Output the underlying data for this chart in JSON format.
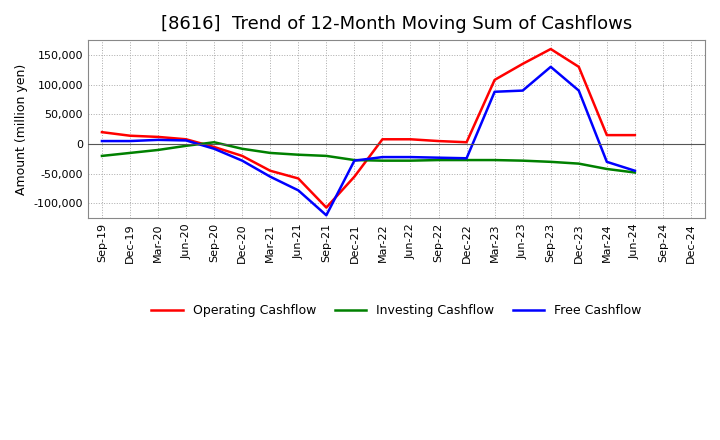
{
  "title": "[8616]  Trend of 12-Month Moving Sum of Cashflows",
  "ylabel": "Amount (million yen)",
  "x_labels": [
    "Sep-19",
    "Dec-19",
    "Mar-20",
    "Jun-20",
    "Sep-20",
    "Dec-20",
    "Mar-21",
    "Jun-21",
    "Sep-21",
    "Dec-21",
    "Mar-22",
    "Jun-22",
    "Sep-22",
    "Dec-22",
    "Mar-23",
    "Jun-23",
    "Sep-23",
    "Dec-23",
    "Mar-24",
    "Jun-24",
    "Sep-24",
    "Dec-24"
  ],
  "operating_cashflow": [
    20000,
    14000,
    12000,
    8000,
    -5000,
    -20000,
    -45000,
    -58000,
    -107000,
    -55000,
    8000,
    8000,
    5000,
    3000,
    108000,
    135000,
    160000,
    130000,
    15000,
    15000,
    null,
    null
  ],
  "investing_cashflow": [
    -20000,
    -15000,
    -10000,
    -3000,
    3000,
    -8000,
    -15000,
    -18000,
    -20000,
    -27000,
    -28000,
    -28000,
    -27000,
    -27000,
    -27000,
    -28000,
    -30000,
    -33000,
    -42000,
    -48000,
    null,
    null
  ],
  "free_cashflow": [
    5000,
    5000,
    7000,
    6000,
    -8000,
    -28000,
    -55000,
    -78000,
    -120000,
    -28000,
    -22000,
    -22000,
    -23000,
    -24000,
    88000,
    90000,
    130000,
    90000,
    -30000,
    -45000,
    null,
    null
  ],
  "ylim": [
    -125000,
    175000
  ],
  "yticks": [
    -100000,
    -50000,
    0,
    50000,
    100000,
    150000
  ],
  "operating_color": "#FF0000",
  "investing_color": "#008000",
  "free_color": "#0000FF",
  "background_color": "#FFFFFF",
  "plot_bg_color": "#FFFFFF",
  "grid_color": "#AAAAAA",
  "title_fontsize": 13,
  "axis_label_fontsize": 9,
  "tick_fontsize": 8,
  "legend_labels": [
    "Operating Cashflow",
    "Investing Cashflow",
    "Free Cashflow"
  ],
  "linewidth": 1.8
}
